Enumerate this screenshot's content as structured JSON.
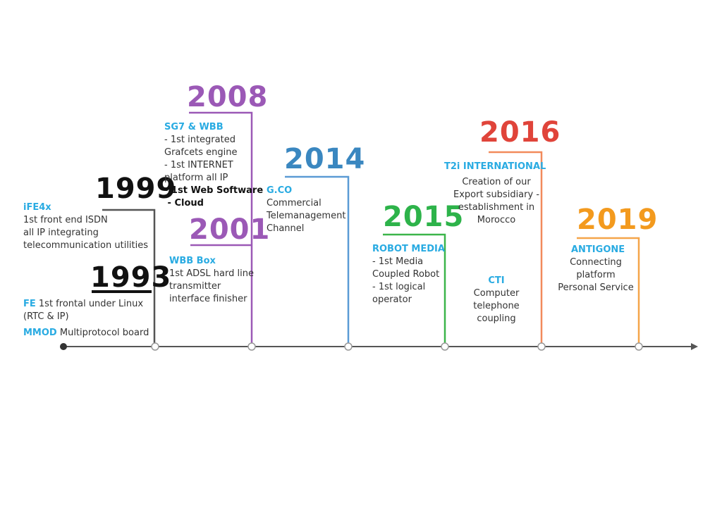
{
  "milestones": [
    {
      "year": "1993",
      "items": [
        {
          "title": "FE",
          "lines": [
            "1st frontal under Linux",
            "(RTC & IP)"
          ]
        },
        {
          "title": "MMOD",
          "lines": [
            "Multiprotocol board"
          ]
        }
      ]
    },
    {
      "year": "1999",
      "items": [
        {
          "title": "iFE4x",
          "lines": [
            "1st front end ISDN",
            "all IP integrating",
            "telecommunication utilities"
          ]
        }
      ]
    },
    {
      "year": "2001",
      "items": [
        {
          "title": "WBB Box",
          "lines": [
            "1st ADSL hard line",
            "transmitter",
            "interface finisher"
          ]
        }
      ]
    },
    {
      "year": "2008",
      "items": [
        {
          "title": "SG7 & WBB",
          "lines": [
            "- 1st integrated",
            "Grafcets engine",
            "- 1st INTERNET",
            "platform all IP",
            "- 1st Web Software",
            " - Cloud"
          ]
        }
      ]
    },
    {
      "year": "2014",
      "items": [
        {
          "title": "G.CO",
          "lines": [
            "Commercial",
            "Telemanagement",
            "Channel"
          ]
        }
      ]
    },
    {
      "year": "2015",
      "items": [
        {
          "title": "ROBOT MEDIA",
          "lines": [
            "- 1st Media",
            "Coupled Robot",
            "- 1st logical",
            "operator"
          ]
        }
      ]
    },
    {
      "year": "2016",
      "items": [
        {
          "title": "T2i INTERNATIONAL",
          "lines": [
            "Creation of our",
            "Export subsidiary -",
            "establishment in",
            "Morocco"
          ]
        },
        {
          "title": "CTI",
          "lines": [
            "Computer",
            "telephone",
            "coupling"
          ]
        }
      ]
    },
    {
      "year": "2019",
      "items": [
        {
          "title": "ANTIGONE",
          "lines": [
            "Connecting",
            "platform",
            "Personal Service"
          ]
        }
      ]
    }
  ]
}
